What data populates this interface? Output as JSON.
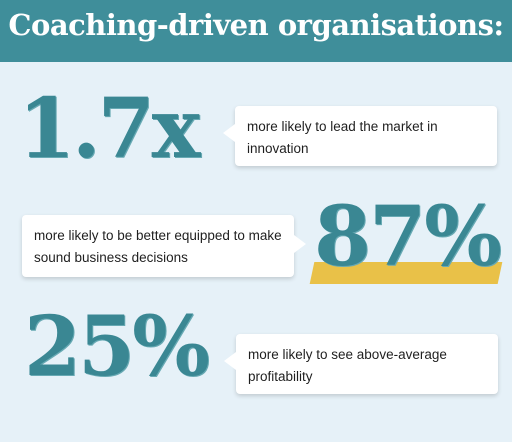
{
  "header": {
    "title": "Coaching-driven organisations:"
  },
  "stats": [
    {
      "value": "1.7x",
      "text": "more likely to lead the market in innovation"
    },
    {
      "value": "87%",
      "text": "more likely to be better equipped to make sound business decisions"
    },
    {
      "value": "25%",
      "text": "more likely to see above-average profitability"
    }
  ],
  "colors": {
    "header_bg": "#3f8e9a",
    "accent_text": "#3a8793",
    "highlight": "#e9c148",
    "background": "#e6f1f8"
  }
}
